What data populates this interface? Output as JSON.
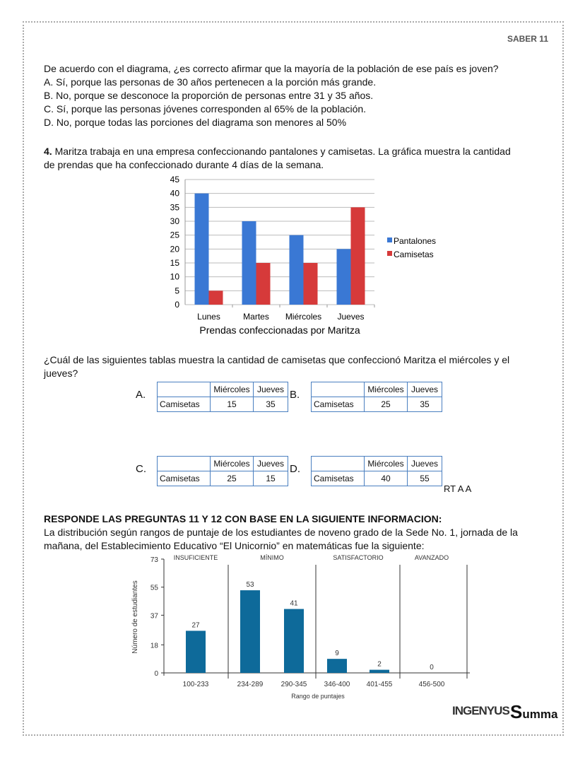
{
  "header": "SABER 11",
  "q3": {
    "question": "De acuerdo con el diagrama, ¿es correcto afirmar que la mayoría de la población de ese país es joven?",
    "options": [
      "A. Sí, porque las personas de 30 años pertenecen a la porción más grande.",
      "B. No, porque se desconoce la proporción de personas entre 31 y 35 años.",
      "C. Sí, porque las personas jóvenes corresponden al 65% de la población.",
      "D. No, porque todas las porciones del diagrama son menores al 50%"
    ]
  },
  "q4": {
    "number": "4.",
    "text1": " Maritza trabaja en una empresa confeccionando pantalones y camisetas. La gráfica muestra la cantidad",
    "text2": "de prendas que ha confeccionado durante 4 días de la semana.",
    "question1": "¿Cuál de las siguientes tablas muestra la cantidad de camisetas que confeccionó Maritza el miércoles y el",
    "question2": "jueves?",
    "tables": [
      {
        "letter": "A.",
        "headers": [
          "Miércoles",
          "Jueves"
        ],
        "row_label": "Camisetas",
        "values": [
          "15",
          "35"
        ]
      },
      {
        "letter": "B.",
        "headers": [
          "Miércoles",
          "Jueves"
        ],
        "row_label": "Camisetas",
        "values": [
          "25",
          "35"
        ]
      },
      {
        "letter": "C.",
        "headers": [
          "Miércoles",
          "Jueves"
        ],
        "row_label": "Camisetas",
        "values": [
          "25",
          "15"
        ]
      },
      {
        "letter": "D.",
        "headers": [
          "Miércoles",
          "Jueves"
        ],
        "row_label": "Camisetas",
        "values": [
          "40",
          "55"
        ]
      }
    ],
    "note": "RT A A"
  },
  "section": {
    "title": "RESPONDE LAS PREGUNTAS 11 Y 12 CON BASE EN LA SIGUIENTE INFORMACION:",
    "text1": "La distribución según rangos de puntaje de los estudiantes de noveno grado de la Sede No. 1, jornada de la",
    "text2": "mañana, del Establecimiento Educativo “El Unicornio” en matemáticas fue la siguiente:"
  },
  "logos": {
    "left": "INGENYUS",
    "right": "Summa"
  },
  "chart_data": [
    {
      "type": "bar",
      "title": "Prendas confeccionadas por Maritza",
      "categories": [
        "Lunes",
        "Martes",
        "Miércoles",
        "Jueves"
      ],
      "series": [
        {
          "name": "Pantalones",
          "values": [
            40,
            30,
            25,
            20
          ],
          "color": "#3a78d4"
        },
        {
          "name": "Camisetas",
          "values": [
            5,
            15,
            15,
            35
          ],
          "color": "#d63a3a"
        }
      ],
      "ylim": [
        0,
        45
      ],
      "yticks": [
        0,
        5,
        10,
        15,
        20,
        25,
        30,
        35,
        40,
        45
      ],
      "grid": true,
      "legend": "right"
    },
    {
      "type": "bar",
      "xlabel": "Rango de puntajes",
      "ylabel": "Número de estudiantes",
      "categories": [
        "100-233",
        "234-289",
        "290-345",
        "346-400",
        "401-455",
        "456-500"
      ],
      "values": [
        27,
        53,
        41,
        9,
        2,
        0
      ],
      "ylim": [
        0,
        73
      ],
      "yticks": [
        0,
        18,
        37,
        55,
        73
      ],
      "color": "#0e6a9a",
      "groups": [
        {
          "label": "INSUFICIENTE",
          "categories": 1
        },
        {
          "label": "MÍNIMO",
          "categories": 2
        },
        {
          "label": "SATISFACTORIO",
          "categories": 2
        },
        {
          "label": "AVANZADO",
          "categories": 1
        }
      ]
    }
  ]
}
